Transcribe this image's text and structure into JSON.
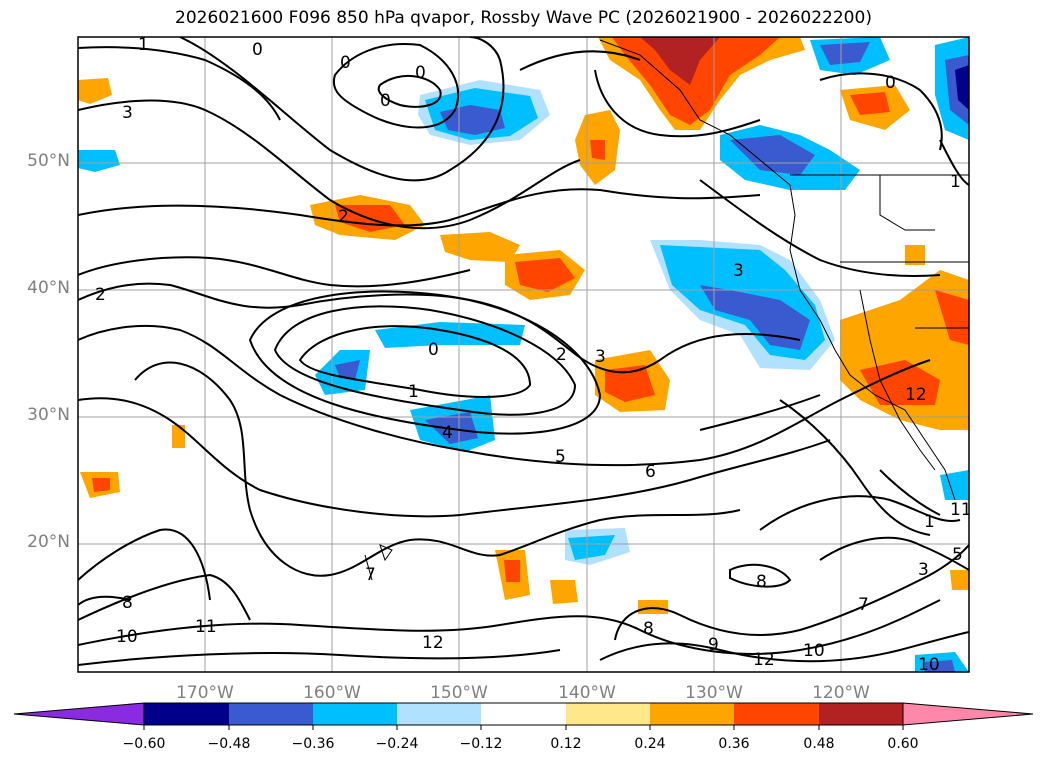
{
  "title": "2026021600 F096 850 hPa qvapor, Rossby Wave PC (2026021900 - 2026022200)",
  "map": {
    "lat_labels": [
      "50°N",
      "40°N",
      "30°N",
      "20°N"
    ],
    "lon_labels": [
      "170°W",
      "160°W",
      "150°W",
      "140°W",
      "130°W",
      "120°W"
    ],
    "lat_range": [
      10,
      60
    ],
    "lon_range": [
      -180,
      -110
    ],
    "contour_labels": [
      "1",
      "0",
      "0",
      "0",
      "0",
      "3",
      "2",
      "3",
      "2",
      "0",
      "1",
      "2",
      "3",
      "4",
      "5",
      "6",
      "7",
      "8",
      "8",
      "9",
      "10",
      "10",
      "11",
      "12",
      "12",
      "8",
      "7",
      "1",
      "3",
      "5",
      "1",
      "0",
      "11",
      "12",
      "10"
    ]
  },
  "colorbar": {
    "ticks": [
      "−0.60",
      "−0.48",
      "−0.36",
      "−0.24",
      "−0.12",
      "0.12",
      "0.24",
      "0.36",
      "0.48",
      "0.60"
    ],
    "colors": [
      "#8a2be2",
      "#00008b",
      "#3a5bcf",
      "#00bfff",
      "#b0e2ff",
      "#ffffff",
      "#ffe88a",
      "#ffa500",
      "#ff4500",
      "#b22222",
      "#ff88aa"
    ]
  },
  "chart_data": {
    "type": "heatmap",
    "title": "2026021600 F096 850 hPa qvapor, Rossby Wave PC (2026021900 - 2026022200)",
    "field": "850 hPa qvapor anomaly (shaded) with Rossby Wave PC contours",
    "colorbar_levels": [
      -0.6,
      -0.48,
      -0.36,
      -0.24,
      -0.12,
      0.12,
      0.24,
      0.36,
      0.48,
      0.6
    ],
    "contour_values_labeled": [
      0,
      1,
      2,
      3,
      4,
      5,
      6,
      7,
      8,
      9,
      10,
      11,
      12
    ],
    "xaxis": "longitude",
    "yaxis": "latitude",
    "grid": true
  }
}
